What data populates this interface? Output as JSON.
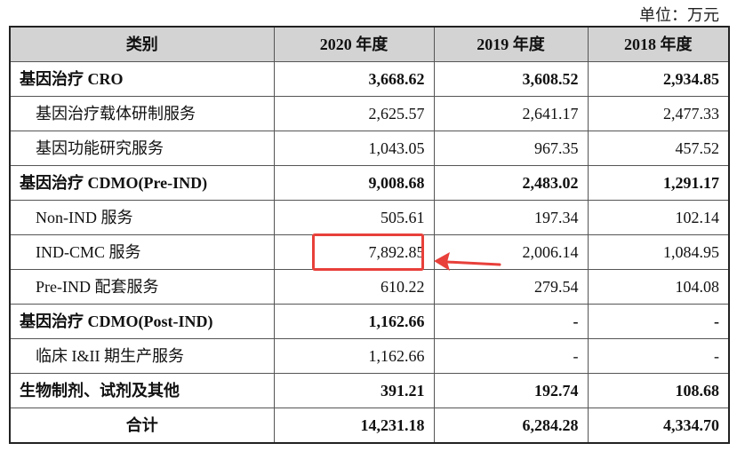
{
  "unit_label": "单位：万元",
  "header": {
    "category": "类别",
    "col_2020": "2020 年度",
    "col_2019": "2019 年度",
    "col_2018": "2018 年度"
  },
  "rows": [
    {
      "label": "基因治疗 CRO",
      "v2020": "3,668.62",
      "v2019": "3,608.52",
      "v2018": "2,934.85"
    },
    {
      "label": "基因治疗载体研制服务",
      "v2020": "2,625.57",
      "v2019": "2,641.17",
      "v2018": "2,477.33"
    },
    {
      "label": "基因功能研究服务",
      "v2020": "1,043.05",
      "v2019": "967.35",
      "v2018": "457.52"
    },
    {
      "label": "基因治疗 CDMO(Pre-IND)",
      "v2020": "9,008.68",
      "v2019": "2,483.02",
      "v2018": "1,291.17"
    },
    {
      "label": "Non-IND 服务",
      "v2020": "505.61",
      "v2019": "197.34",
      "v2018": "102.14"
    },
    {
      "label": "IND-CMC 服务",
      "v2020": "7,892.85",
      "v2019": "2,006.14",
      "v2018": "1,084.95"
    },
    {
      "label": "Pre-IND 配套服务",
      "v2020": "610.22",
      "v2019": "279.54",
      "v2018": "104.08"
    },
    {
      "label": "基因治疗 CDMO(Post-IND)",
      "v2020": "1,162.66",
      "v2019": "-",
      "v2018": "-"
    },
    {
      "label": "临床 I&II 期生产服务",
      "v2020": "1,162.66",
      "v2019": "-",
      "v2018": "-"
    },
    {
      "label": "生物制剂、试剂及其他",
      "v2020": "391.21",
      "v2019": "192.74",
      "v2018": "108.68"
    },
    {
      "label": "合计",
      "v2020": "14,231.18",
      "v2019": "6,284.28",
      "v2018": "4,334.70"
    }
  ],
  "annotation_color": "#e8403a"
}
